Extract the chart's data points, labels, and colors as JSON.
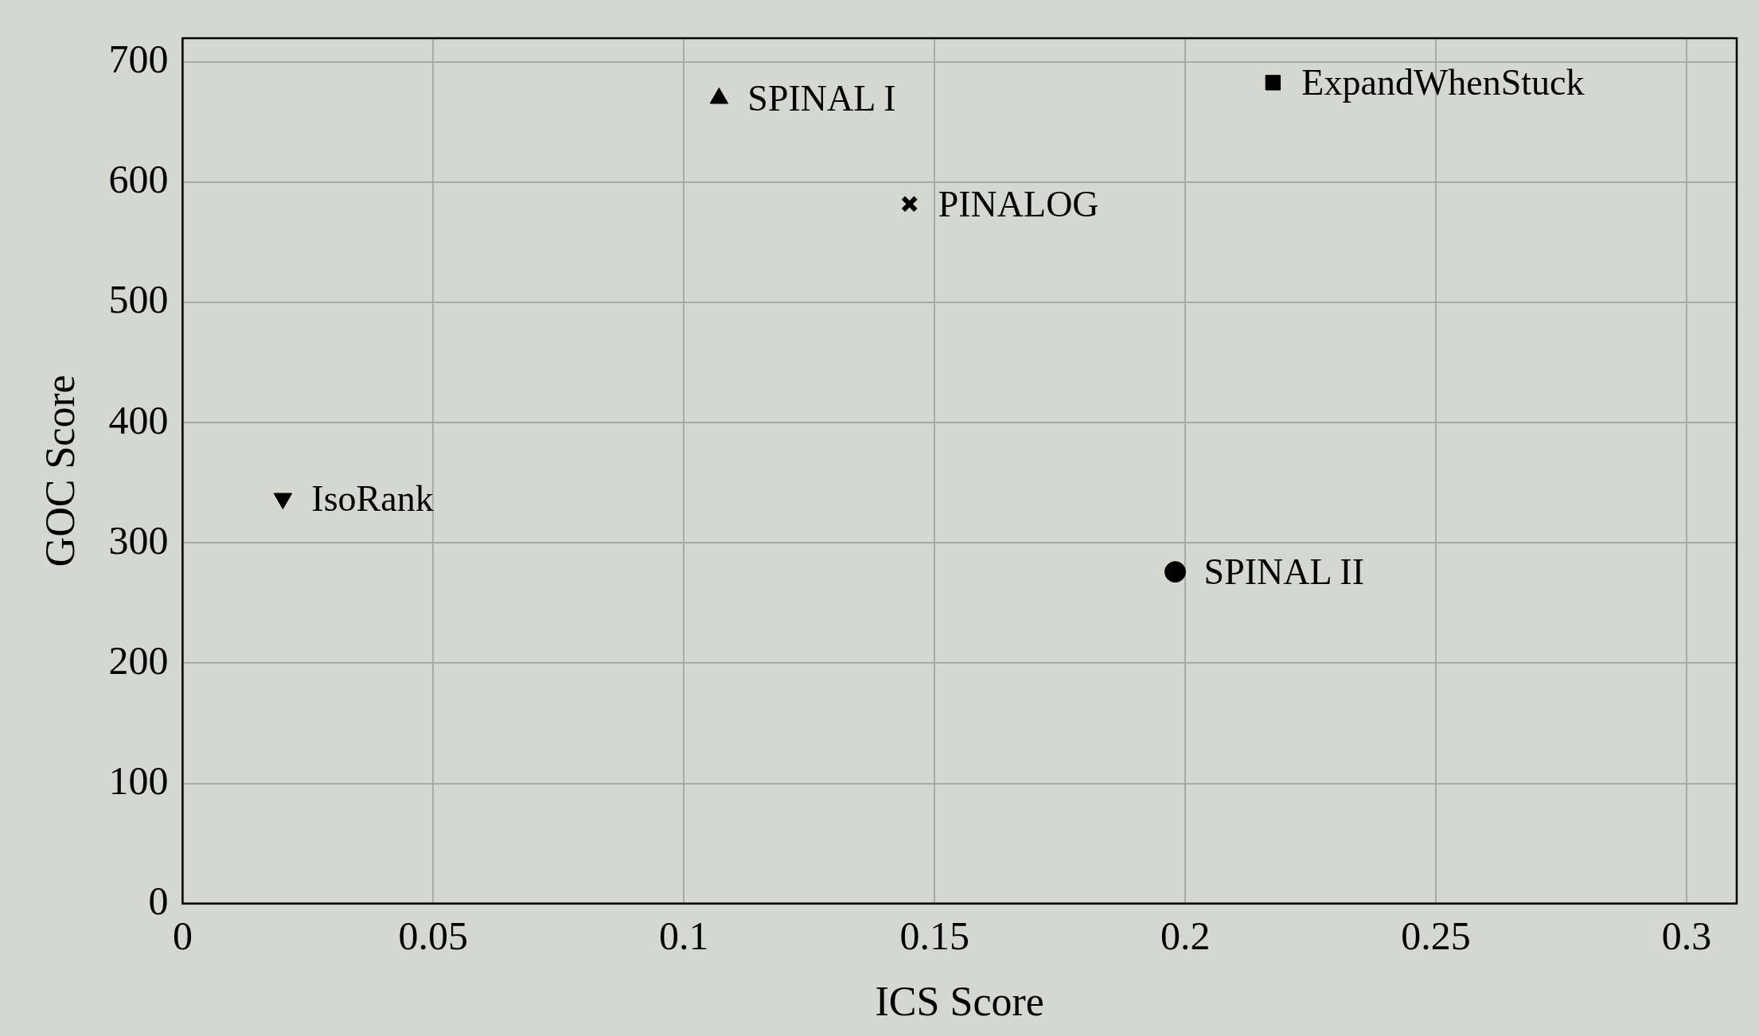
{
  "chart_data": {
    "type": "scatter",
    "xlabel": "ICS Score",
    "ylabel": "GOC Score",
    "xlim": [
      0,
      0.31
    ],
    "xticks": [
      0,
      0.05,
      0.1,
      0.15,
      0.2,
      0.25,
      0.3
    ],
    "ylim": [
      0,
      720
    ],
    "yticks": [
      0,
      100,
      200,
      300,
      400,
      500,
      600,
      700
    ],
    "grid": true,
    "legend": false,
    "series": [
      {
        "name": "IsoRank",
        "color": "#000000",
        "marker": "triangle-down",
        "x": [
          0.02
        ],
        "values": [
          337
        ]
      },
      {
        "name": "SPINAL I",
        "color": "#000000",
        "marker": "triangle",
        "x": [
          0.107
        ],
        "values": [
          670
        ]
      },
      {
        "name": "PINALOG",
        "color": "#000000",
        "marker": "cross",
        "x": [
          0.145
        ],
        "values": [
          582
        ]
      },
      {
        "name": "SPINAL II",
        "color": "#000000",
        "marker": "circle",
        "x": [
          0.198
        ],
        "values": [
          276
        ]
      },
      {
        "name": "ExpandWhenStuck",
        "color": "#000000",
        "marker": "square",
        "x": [
          0.2175
        ],
        "values": [
          683
        ]
      }
    ]
  }
}
